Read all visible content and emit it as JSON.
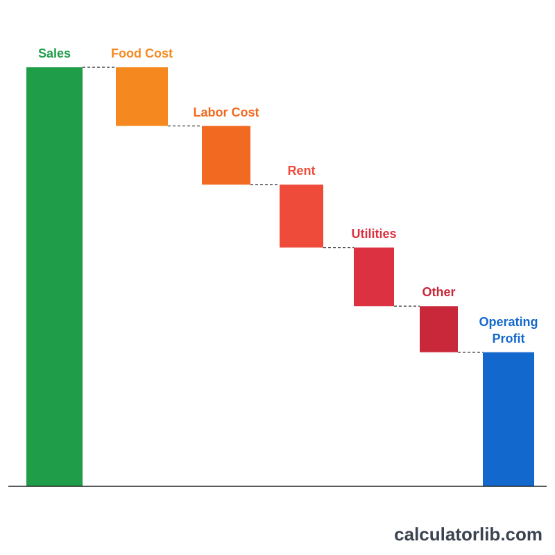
{
  "chart_data": {
    "type": "waterfall",
    "categories": [
      "Sales",
      "Food Cost",
      "Labor Cost",
      "Rent",
      "Utilities",
      "Other",
      "Operating Profit"
    ],
    "values": [
      100,
      -14,
      -14,
      -15,
      -14,
      -11,
      32
    ],
    "colors": [
      "#1f9d48",
      "#f5891f",
      "#f26a21",
      "#ef4b3b",
      "#dc3140",
      "#c8283a",
      "#1268cc"
    ],
    "ylim": [
      0,
      100
    ],
    "watermark": "calculatorlib.com"
  }
}
